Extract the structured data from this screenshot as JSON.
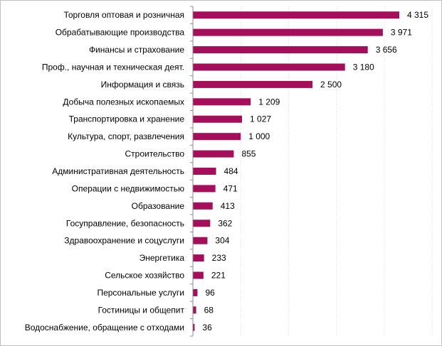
{
  "chart_data": {
    "type": "bar",
    "orientation": "horizontal",
    "categories": [
      "Торговля  оптовая  и розничная",
      "Обрабатывающие  производства",
      "Финансы и страхование",
      "Проф.,  научная и техническая деят.",
      "Информация  и связь",
      "Добыча полезных ископаемых",
      "Транспортировка  и хранение",
      "Культура, спорт, развлечения",
      "Строительство",
      "Административная  деятельность",
      "Операции  с недвижимостью",
      "Образование",
      "Госуправление,  безопасность",
      "Здравоохранение  и соцуслуги",
      "Энергетика",
      "Сельское хозяйство",
      "Персональные  услуги",
      "Гостиницы  и общепит",
      "Водоснабжение,  обращение  с отходами"
    ],
    "values": [
      4315,
      3971,
      3656,
      3180,
      2500,
      1209,
      1027,
      1000,
      855,
      484,
      471,
      413,
      362,
      304,
      233,
      221,
      96,
      68,
      36
    ],
    "value_labels": [
      "4 315",
      "3 971",
      "3 656",
      "3 180",
      "2 500",
      "1 209",
      "1 027",
      "1 000",
      "855",
      "484",
      "471",
      "413",
      "362",
      "304",
      "233",
      "221",
      "96",
      "68",
      "36"
    ],
    "title": "",
    "xlabel": "",
    "ylabel": "",
    "xlim": [
      0,
      5000
    ],
    "grid": "vertical dotted",
    "legend": "none",
    "bar_color": "#a50e5a",
    "grid_color": "#d9d9d9",
    "axis_color": "#8c8c8c"
  }
}
